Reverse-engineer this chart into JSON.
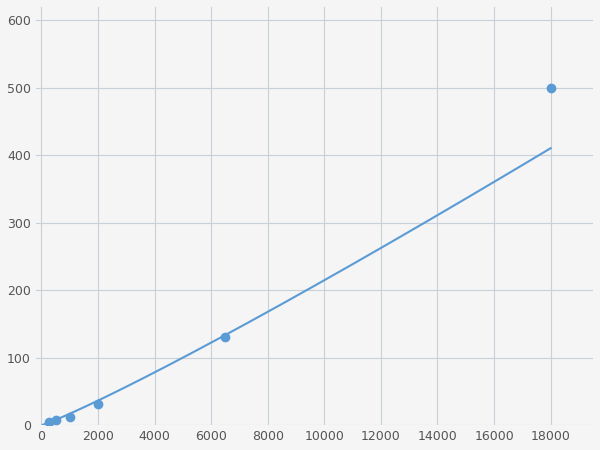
{
  "marker_x": [
    250,
    500,
    1000,
    2000,
    6500,
    18000
  ],
  "marker_y": [
    5,
    8,
    12,
    32,
    130,
    500
  ],
  "line_color": "#5b9bd5",
  "marker_color": "#5b9bd5",
  "xlim": [
    -200,
    19500
  ],
  "ylim": [
    0,
    620
  ],
  "xticks": [
    0,
    2000,
    4000,
    6000,
    8000,
    10000,
    12000,
    14000,
    16000,
    18000
  ],
  "yticks": [
    0,
    100,
    200,
    300,
    400,
    500,
    600
  ],
  "grid_color": "#c8d0d8",
  "bg_color": "#f5f5f5",
  "figsize": [
    6.0,
    4.5
  ],
  "dpi": 100,
  "marker_size": 6,
  "linewidth": 1.5
}
